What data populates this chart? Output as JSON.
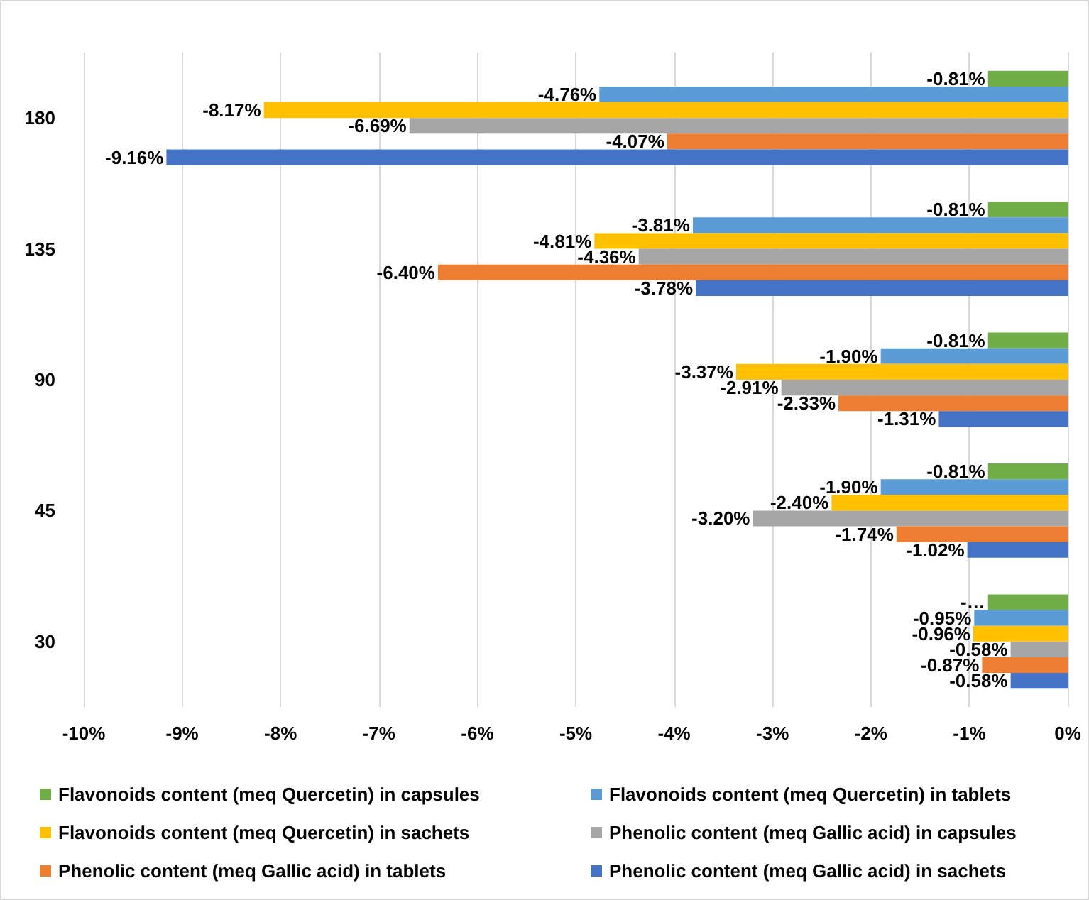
{
  "chart_data": {
    "type": "bar",
    "orientation": "horizontal",
    "categories": [
      "180",
      "135",
      "90",
      "45",
      "30"
    ],
    "series": [
      {
        "name": "Flavonoids content (meq Quercetin) in capsules",
        "color": "#70ad47",
        "values": [
          -0.81,
          -0.81,
          -0.81,
          -0.81,
          -0.81
        ],
        "value_labels": [
          "-0.81%",
          "-0.81%",
          "-0.81%",
          "-0.81%",
          "-…"
        ]
      },
      {
        "name": "Flavonoids content (meq Quercetin) in tablets",
        "color": "#5b9bd5",
        "values": [
          -4.76,
          -3.81,
          -1.9,
          -1.9,
          -0.95
        ],
        "value_labels": [
          "-4.76%",
          "-3.81%",
          "-1.90%",
          "-1.90%",
          "-0.95%"
        ]
      },
      {
        "name": "Flavonoids content (meq Quercetin) in sachets",
        "color": "#ffc000",
        "values": [
          -8.17,
          -4.81,
          -3.37,
          -2.4,
          -0.96
        ],
        "value_labels": [
          "-8.17%",
          "-4.81%",
          "-3.37%",
          "-2.40%",
          "-0.96%"
        ]
      },
      {
        "name": "Phenolic content (meq Gallic acid) in capsules",
        "color": "#a5a5a5",
        "values": [
          -6.69,
          -4.36,
          -2.91,
          -3.2,
          -0.58
        ],
        "value_labels": [
          "-6.69%",
          "-4.36%",
          "-2.91%",
          "-3.20%",
          "-0.58%"
        ]
      },
      {
        "name": "Phenolic content (meq Gallic acid) in tablets",
        "color": "#ed7d31",
        "values": [
          -4.07,
          -6.4,
          -2.33,
          -1.74,
          -0.87
        ],
        "value_labels": [
          "-4.07%",
          "-6.40%",
          "-2.33%",
          "-1.74%",
          "-0.87%"
        ]
      },
      {
        "name": "Phenolic content (meq Gallic acid) in sachets",
        "color": "#4472c4",
        "values": [
          -9.16,
          -3.78,
          -1.31,
          -1.02,
          -0.58
        ],
        "value_labels": [
          "-9.16%",
          "-3.78%",
          "-1.31%",
          "-1.02%",
          "-0.58%"
        ]
      }
    ],
    "xlim": [
      -10,
      0
    ],
    "xticks": [
      {
        "value": -10,
        "label": "-10%"
      },
      {
        "value": -9,
        "label": "-9%"
      },
      {
        "value": -8,
        "label": "-8%"
      },
      {
        "value": -7,
        "label": "-7%"
      },
      {
        "value": -6,
        "label": "-6%"
      },
      {
        "value": -5,
        "label": "-5%"
      },
      {
        "value": -4,
        "label": "-4%"
      },
      {
        "value": -3,
        "label": "-3%"
      },
      {
        "value": -2,
        "label": "-2%"
      },
      {
        "value": -1,
        "label": "-1%"
      },
      {
        "value": 0,
        "label": "0%"
      }
    ],
    "grid": "x",
    "legend": "bottom"
  }
}
